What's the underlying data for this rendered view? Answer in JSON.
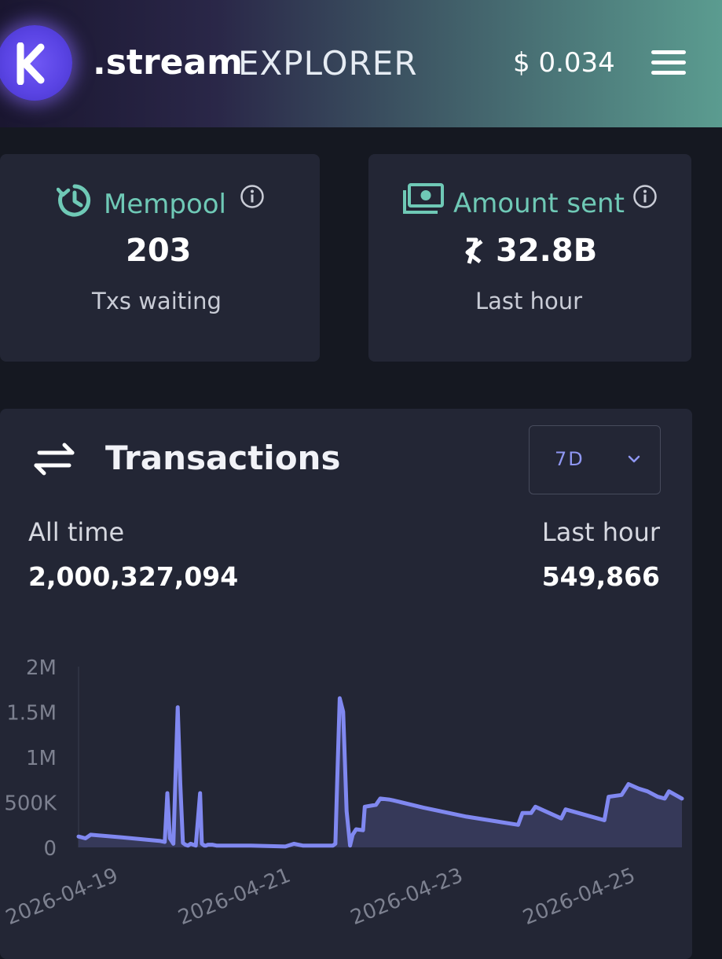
{
  "header": {
    "brand": ".stream",
    "subtitle": "EXPLORER",
    "price": "$ 0.034",
    "logo_icon": "kaspa-logo-icon",
    "menu_icon": "hamburger-menu-icon"
  },
  "mempool": {
    "title": "Mempool",
    "value": "203",
    "sub": "Txs waiting",
    "icon": "clock-refresh-icon"
  },
  "amount_sent": {
    "title": "Amount sent",
    "value": "32.8B",
    "currency_symbol": "kaspa-currency-icon",
    "sub": "Last hour",
    "icon": "money-stack-icon"
  },
  "transactions": {
    "title": "Transactions",
    "icon": "swap-arrows-icon",
    "range": "7D",
    "all_time_label": "All time",
    "all_time_value": "2,000,327,094",
    "last_hour_label": "Last hour",
    "last_hour_value": "549,866"
  },
  "colors": {
    "accent_teal": "#6fc9b6",
    "line": "#8088f0",
    "area": "#3d4066",
    "card": "#232635",
    "background": "#151821"
  },
  "chart_data": {
    "type": "area",
    "x_tick_labels": [
      "2026-04-19",
      "2026-04-21",
      "2026-04-23",
      "2026-04-25"
    ],
    "y_tick_labels": [
      "0",
      "500K",
      "1M",
      "1.5M",
      "2M"
    ],
    "ylim": [
      0,
      2000000
    ],
    "xlim": [
      0,
      7
    ],
    "grid": false,
    "legend": "none",
    "x": [
      0.0,
      0.08,
      0.14,
      0.5,
      0.95,
      1.0,
      1.03,
      1.06,
      1.1,
      1.15,
      1.18,
      1.21,
      1.24,
      1.27,
      1.3,
      1.36,
      1.41,
      1.43,
      1.46,
      1.48,
      1.5,
      1.55,
      1.6,
      2.0,
      2.4,
      2.5,
      2.6,
      2.95,
      2.98,
      3.0,
      3.03,
      3.07,
      3.11,
      3.15,
      3.18,
      3.22,
      3.3,
      3.32,
      3.45,
      3.5,
      3.6,
      3.65,
      4.0,
      4.5,
      5.1,
      5.15,
      5.25,
      5.3,
      5.6,
      5.65,
      6.1,
      6.15,
      6.3,
      6.38,
      6.5,
      6.6,
      6.72,
      6.8,
      6.85,
      7.0
    ],
    "y": [
      120000,
      100000,
      140000,
      110000,
      70000,
      60000,
      600000,
      100000,
      40000,
      1550000,
      700000,
      50000,
      30000,
      20000,
      40000,
      20000,
      600000,
      40000,
      20000,
      20000,
      30000,
      30000,
      20000,
      20000,
      10000,
      40000,
      20000,
      20000,
      40000,
      700000,
      1650000,
      1500000,
      400000,
      20000,
      140000,
      200000,
      190000,
      450000,
      470000,
      540000,
      530000,
      520000,
      440000,
      340000,
      250000,
      380000,
      380000,
      450000,
      320000,
      420000,
      300000,
      560000,
      580000,
      700000,
      650000,
      620000,
      560000,
      540000,
      620000,
      540000
    ]
  }
}
